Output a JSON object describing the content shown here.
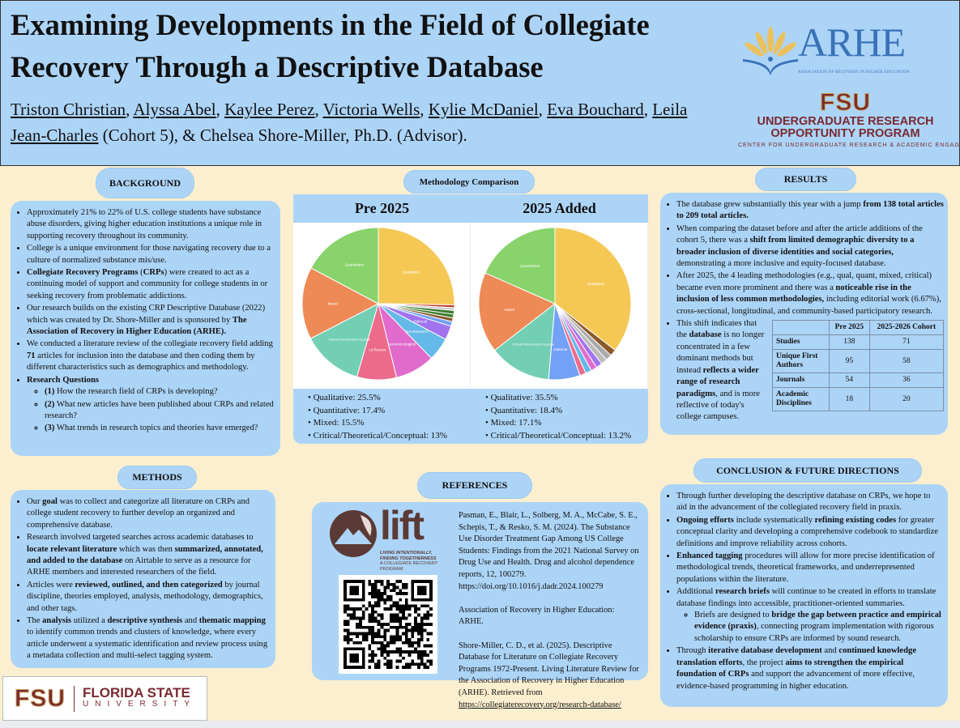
{
  "header": {
    "title": "Examining Developments in the Field of Collegiate Recovery Through a Descriptive Database",
    "authors_underlined": [
      "Triston Christian",
      "Alyssa Abel",
      "Kaylee Perez",
      "Victoria Wells",
      "Kylie McDaniel",
      "Eva Bouchard",
      "Leila Jean-Charles"
    ],
    "authors_tail": " (Cohort 5), & Chelsea Shore-Miller, Ph.D. (Advisor).",
    "logos": {
      "arhe": "ARHE",
      "arhe_sub": "ASSOCIATION OF RECOVERY IN HIGHER EDUCATION",
      "fsu": "FSU",
      "urop_line1": "UNDERGRADUATE RESEARCH",
      "urop_line2": "OPPORTUNITY PROGRAM",
      "urop_line3": "CENTER FOR UNDERGRADUATE RESEARCH & ACADEMIC ENGAGEMENT"
    }
  },
  "background": {
    "heading": "BACKGROUND",
    "items": [
      {
        "seg": [
          {
            "t": "Approximately 21% to 22% of U.S. college students have substance abuse disorders, giving higher education institutions a unique role in supporting recovery throughout its community."
          }
        ]
      },
      {
        "seg": [
          {
            "t": "College is a unique environment for those navigating recovery due to a culture of normalized substance mis/use."
          }
        ]
      },
      {
        "seg": [
          {
            "t": "Collegiate Recovery Programs",
            "b": true
          },
          {
            "t": " ("
          },
          {
            "t": "CRPs",
            "b": true
          },
          {
            "t": ") were created to act as a continuing model of support and community for college students in or seeking recovery from problematic addictions."
          }
        ]
      },
      {
        "seg": [
          {
            "t": "Our research builds on the existing CRP Descriptive Database (2022) which was created by Dr. Shore-Miller and is sponsored by "
          },
          {
            "t": "The Association of Recovery in Higher Education (ARHE).",
            "b": true
          }
        ]
      },
      {
        "seg": [
          {
            "t": "We conducted a literature review of the collegiate recovery field adding "
          },
          {
            "t": "71",
            "b": true
          },
          {
            "t": " articles for inclusion into the database and then coding them by different characteristics such as demographics and methodology."
          }
        ]
      },
      {
        "seg": [
          {
            "t": "Research Questions",
            "b": true
          }
        ],
        "sub": [
          {
            "seg": [
              {
                "t": "(1)",
                "b": true
              },
              {
                "t": " How the research field of CRPs is developing?"
              }
            ]
          },
          {
            "seg": [
              {
                "t": "(2)",
                "b": true
              },
              {
                "t": " What new articles have been published about CRPs and related research?"
              }
            ]
          },
          {
            "seg": [
              {
                "t": "(3)",
                "b": true
              },
              {
                "t": " What trends in research topics and theories have emerged?"
              }
            ]
          }
        ]
      }
    ]
  },
  "methods": {
    "heading": "METHODS",
    "items": [
      {
        "seg": [
          {
            "t": "Our "
          },
          {
            "t": "goal",
            "b": true
          },
          {
            "t": " was to collect and categorize all literature on CRPs and college student recovery to further develop an organized and comprehensive database."
          }
        ]
      },
      {
        "seg": [
          {
            "t": "Research involved targeted searches across academic databases to "
          },
          {
            "t": "locate relevant literature",
            "b": true
          },
          {
            "t": " which was then "
          },
          {
            "t": "summarized, annotated, and added to the database",
            "b": true
          },
          {
            "t": " on Airtable to serve as a resource for ARHE members and interested researchers of the field."
          }
        ]
      },
      {
        "seg": [
          {
            "t": "Articles were "
          },
          {
            "t": "reviewed, outlined, and then categorized",
            "b": true
          },
          {
            "t": " by journal discipline, theories employed, analysis, methodology, demographics, and other tags."
          }
        ]
      },
      {
        "seg": [
          {
            "t": "The "
          },
          {
            "t": "analysis",
            "b": true
          },
          {
            "t": " utilized a "
          },
          {
            "t": "descriptive synthesis",
            "b": true
          },
          {
            "t": " and "
          },
          {
            "t": "thematic mapping",
            "b": true
          },
          {
            "t": " to identify common trends and clusters of knowledge, where every article underwent a systematic identification and review process using a metadata collection and multi-select tagging system."
          }
        ]
      }
    ]
  },
  "methodology": {
    "heading": "Methodology Comparison",
    "legend_pre": [
      "Qualitative: 25.5%",
      "Quantitative: 17.4%",
      "Mixed: 15.5%",
      "Critical/Theoretical/Conceptual: 13%"
    ],
    "legend_post": [
      "Qualitative: 35.5%",
      "Quantitative: 18.4%",
      "Mixed: 17.1%",
      "Critical/Theoretical/Conceptual: 13.2%"
    ]
  },
  "chart_data": [
    {
      "type": "pie",
      "title": "Pre 2025",
      "slices": [
        {
          "label": "Qualitative",
          "value": 25.5,
          "color": "#f5c855"
        },
        {
          "label": "",
          "value": 0.6,
          "color": "#c0392b"
        },
        {
          "label": "",
          "value": 0.6,
          "color": "#cccccc"
        },
        {
          "label": "",
          "value": 0.8,
          "color": "#3b7d2e"
        },
        {
          "label": "",
          "value": 0.8,
          "color": "#3b7d2e"
        },
        {
          "label": "",
          "value": 0.8,
          "color": "#8b5a2b"
        },
        {
          "label": "",
          "value": 1.0,
          "color": "#72a1f5"
        },
        {
          "label": "Editorial",
          "value": 3,
          "color": "#a173ee"
        },
        {
          "label": "Action Research",
          "value": 5,
          "color": "#64b9e8"
        },
        {
          "label": "Phenomenological",
          "value": 8.5,
          "color": "#e06bcc"
        },
        {
          "label": "Lit Review",
          "value": 8.5,
          "color": "#ec6b8b"
        },
        {
          "label": "Critical/Theoretical/Conceptual",
          "value": 13,
          "color": "#72cfb4"
        },
        {
          "label": "Mixed",
          "value": 15.5,
          "color": "#ee8a56"
        },
        {
          "label": "Quantitative",
          "value": 17.4,
          "color": "#88d36c"
        }
      ]
    },
    {
      "type": "pie",
      "title": "2025 Added",
      "slices": [
        {
          "label": "Qualitative",
          "value": 35.5,
          "color": "#f5c855"
        },
        {
          "label": "",
          "value": 1.4,
          "color": "#8b5a2b"
        },
        {
          "label": "",
          "value": 1.3,
          "color": "#aaaaaa"
        },
        {
          "label": "",
          "value": 1.3,
          "color": "#bbbbbb"
        },
        {
          "label": "",
          "value": 1.3,
          "color": "#a173ee"
        },
        {
          "label": "",
          "value": 1.3,
          "color": "#e06bcc"
        },
        {
          "label": "",
          "value": 1.3,
          "color": "#64b9e8"
        },
        {
          "label": "",
          "value": 1.3,
          "color": "#ec6b8b"
        },
        {
          "label": "Editorial",
          "value": 6.67,
          "color": "#72a1f5"
        },
        {
          "label": "Critical/Theoretical/Conceptual",
          "value": 13.2,
          "color": "#72cfb4"
        },
        {
          "label": "Mixed",
          "value": 17.1,
          "color": "#ee8a56"
        },
        {
          "label": "Quantitative",
          "value": 18.4,
          "color": "#88d36c"
        }
      ]
    }
  ],
  "results": {
    "heading": "RESULTS",
    "items": [
      {
        "seg": [
          {
            "t": "The database grew substantially this year with a jump "
          },
          {
            "t": "from 138 total articles to 209 total articles.",
            "b": true
          }
        ]
      },
      {
        "seg": [
          {
            "t": "When comparing the dataset before and after the article additions of the cohort 5, there was a "
          },
          {
            "t": "shift from limited demographic diversity to a broader inclusion of diverse identities and social categories,",
            "b": true
          },
          {
            "t": " demonstrating a more inclusive and equity-focused database."
          }
        ]
      },
      {
        "seg": [
          {
            "t": "After 2025, the 4 leading methodologies (e.g., qual, quant, mixed, critical) became even more prominent and there was a "
          },
          {
            "t": "noticeable rise in the inclusion of less common methodologies,",
            "b": true
          },
          {
            "t": " including editorial work (6.67%), cross-sectional, longitudinal, and community-based participatory research."
          }
        ]
      },
      {
        "seg": [
          {
            "t": "This shift indicates that the "
          },
          {
            "t": "database",
            "b": true
          },
          {
            "t": " is no longer concentrated in a few dominant methods but instead "
          },
          {
            "t": "reflects a wider range of research paradigms",
            "b": true
          },
          {
            "t": ", and is more reflective of today's college campuses."
          }
        ]
      }
    ],
    "table": {
      "headers": [
        "",
        "Pre 2025",
        "2025-2026 Cohort"
      ],
      "rows": [
        [
          "Studies",
          "138",
          "71"
        ],
        [
          "Unique First Authors",
          "95",
          "58"
        ],
        [
          "Journals",
          "54",
          "36"
        ],
        [
          "Academic Disciplines",
          "18",
          "20"
        ]
      ]
    }
  },
  "references": {
    "heading": "REFERENCES",
    "lift_logo": {
      "word": "lift",
      "tag1": "LIVING INTENTIONALLY,",
      "tag2": "FINDING TOGETHERNESS",
      "tag3": "A COLLEGIATE RECOVERY PROGRAM"
    },
    "ref1": "Pasman, E., Blair, L., Solberg, M. A., McCabe, S. E., Schepis, T., & Resko, S. M. (2024). The Substance Use Disorder Treatment Gap Among US College Students: Findings from the 2021 National Survey on Drug Use and Health. Drug and alcohol dependence reports, 12, 100279. https://doi.org/10.1016/j.dadr.2024.100279",
    "ref2": "Association of Recovery in Higher Education: ARHE.",
    "ref3": "Shore-Miller, C. D., et al. (2025). Descriptive Database for Literature on Collegiate Recovery Programs 1972-Present. Living Literature Review for the Association of Recovery in Higher Education (ARHE). Retrieved from ",
    "ref3_link": "https://collegiaterecovery.org/research-database/"
  },
  "conclusion": {
    "heading": "CONCLUSION & FUTURE DIRECTIONS",
    "items": [
      {
        "seg": [
          {
            "t": "Through further developing the descriptive database on CRPs, we hope to aid in the advancement of the collegiated recovery field in praxis."
          }
        ]
      },
      {
        "seg": [
          {
            "t": "Ongoing efforts",
            "b": true
          },
          {
            "t": " include systematically "
          },
          {
            "t": "refining existing codes",
            "b": true
          },
          {
            "t": " for greater conceptual clarity and developing a comprehensive codebook to standardize definitions and improve reliability across cohorts."
          }
        ]
      },
      {
        "seg": [
          {
            "t": "Enhanced tagging",
            "b": true
          },
          {
            "t": " procedures will allow for more precise identification of methodological trends, theoretical frameworks, and underrepresented populations within the literature."
          }
        ]
      },
      {
        "seg": [
          {
            "t": "Additional "
          },
          {
            "t": "research briefs",
            "b": true
          },
          {
            "t": " will continue to be created in efforts to translate database findings into accessible, practitioner-oriented summaries."
          }
        ],
        "sub": [
          {
            "seg": [
              {
                "t": "Briefs are designed to "
              },
              {
                "t": "bridge the gap between practice and empirical evidence (praxis)",
                "b": true
              },
              {
                "t": ", connecting program implementation with rigorous scholarship to ensure CRPs are informed by sound research."
              }
            ]
          }
        ]
      },
      {
        "seg": [
          {
            "t": "Through "
          },
          {
            "t": "iterative database development",
            "b": true
          },
          {
            "t": " and "
          },
          {
            "t": "continued knowledge translation efforts",
            "b": true
          },
          {
            "t": ", the project "
          },
          {
            "t": "aims to strengthen the empirical foundation of CRPs",
            "b": true
          },
          {
            "t": " and support the advancement of more effective, evidence-based programming in higher education."
          }
        ]
      }
    ]
  },
  "footer_logo": {
    "fsu": "FSU",
    "name": "FLORIDA STATE",
    "sub": "UNIVERSITY"
  }
}
